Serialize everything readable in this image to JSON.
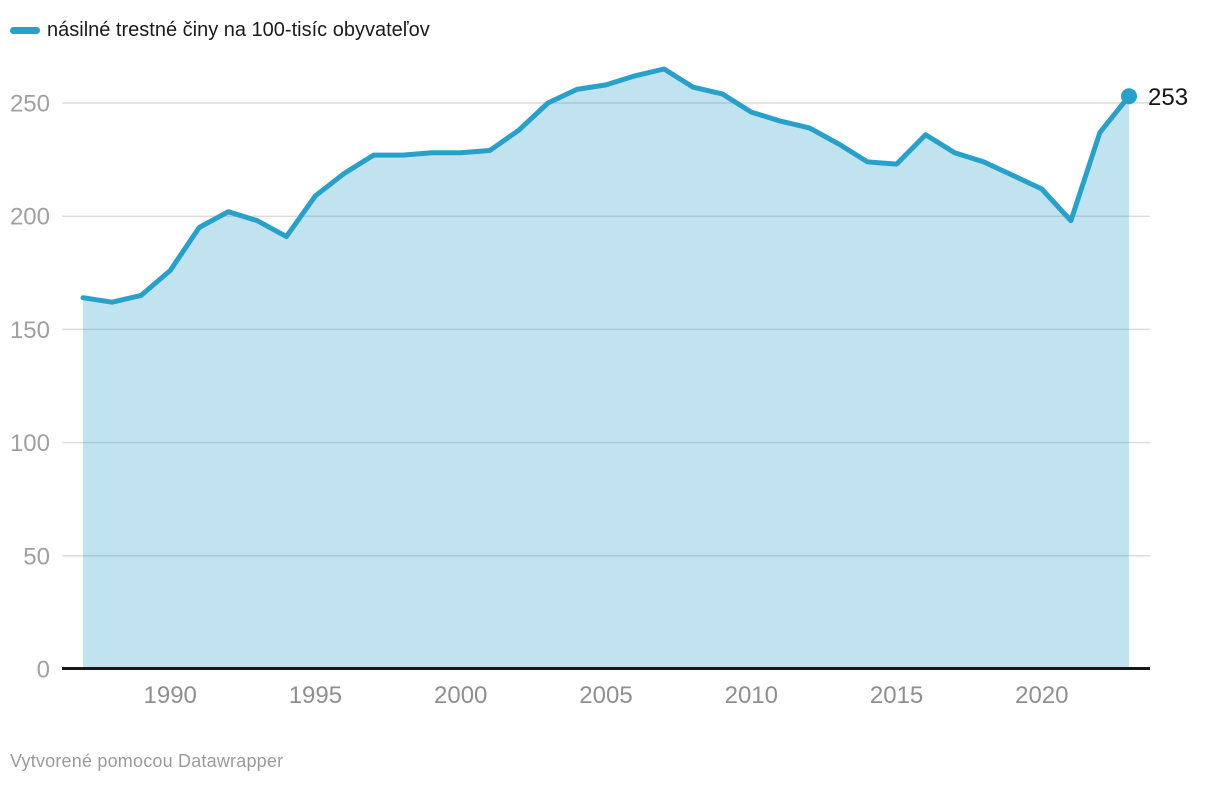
{
  "legend": {
    "label": "násilné trestné činy na 100-tisíc obyvateľov"
  },
  "footer": {
    "credit": "Vytvorené pomocou Datawrapper"
  },
  "chart_data": {
    "type": "area",
    "title": "",
    "series_label": "násilné trestné činy na 100-tisíc obyvateľov",
    "xlabel": "",
    "ylabel": "",
    "x": [
      1987,
      1988,
      1989,
      1990,
      1991,
      1992,
      1993,
      1994,
      1995,
      1996,
      1997,
      1998,
      1999,
      2000,
      2001,
      2002,
      2003,
      2004,
      2005,
      2006,
      2007,
      2008,
      2009,
      2010,
      2011,
      2012,
      2013,
      2014,
      2015,
      2016,
      2017,
      2018,
      2019,
      2020,
      2021,
      2022,
      2023
    ],
    "values": [
      164,
      162,
      165,
      176,
      195,
      202,
      198,
      191,
      209,
      219,
      227,
      227,
      228,
      228,
      229,
      238,
      250,
      256,
      258,
      262,
      265,
      257,
      254,
      246,
      242,
      239,
      232,
      224,
      223,
      236,
      228,
      224,
      218,
      212,
      198,
      237,
      253
    ],
    "end_label": "253",
    "y_ticks": [
      0,
      50,
      100,
      150,
      200,
      250
    ],
    "x_ticks": [
      1990,
      1995,
      2000,
      2005,
      2010,
      2015,
      2020
    ],
    "ylim": [
      0,
      272
    ],
    "grid": true,
    "legend_position": "top-left",
    "style": {
      "line_color": "#29a0c9",
      "fill_color": "rgba(41,160,201,0.29)",
      "grid_color": "#dcdcdc",
      "baseline_color": "#18181a",
      "y_tick_text_color": "#a0a0a0",
      "x_tick_text_color": "#8f8f8f",
      "end_label_color": "#141414"
    }
  }
}
